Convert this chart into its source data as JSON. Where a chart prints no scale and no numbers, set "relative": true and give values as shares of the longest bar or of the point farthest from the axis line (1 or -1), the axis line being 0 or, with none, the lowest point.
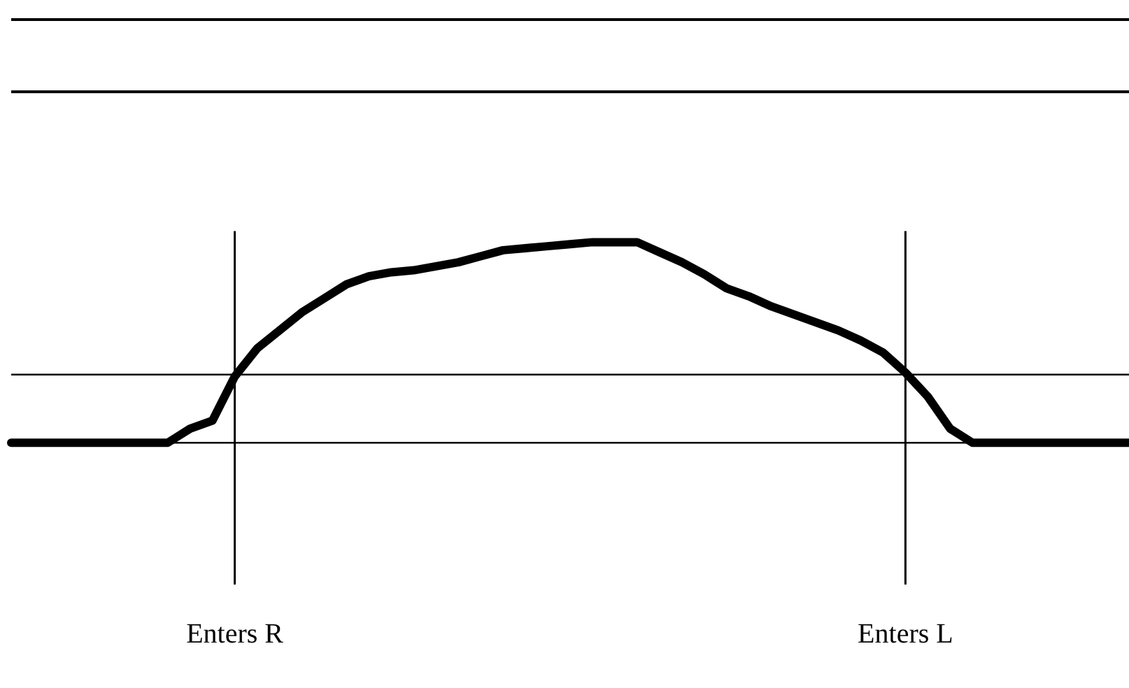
{
  "chart_data": {
    "type": "line",
    "relative": true,
    "tick_labels": "x",
    "marker": "none",
    "line_style": "solid",
    "categories": [
      null,
      null,
      null,
      null,
      null,
      null,
      null,
      null,
      null,
      null,
      "Enters R",
      null,
      null,
      null,
      null,
      null,
      null,
      null,
      null,
      null,
      null,
      null,
      null,
      null,
      null,
      null,
      null,
      null,
      null,
      null,
      null,
      null,
      null,
      null,
      null,
      null,
      null,
      null,
      null,
      null,
      "Enters L",
      null,
      null,
      null,
      null,
      null,
      null,
      null,
      null,
      null,
      null
    ],
    "series": [
      {
        "color": "#000000",
        "values": [
          0,
          0,
          0,
          0,
          0,
          0,
          0,
          0,
          0.07,
          0.11,
          0.33,
          0.47,
          0.56,
          0.65,
          0.72,
          0.79,
          0.83,
          0.85,
          0.86,
          0.88,
          0.9,
          0.93,
          0.96,
          0.97,
          0.98,
          0.99,
          1,
          1,
          1,
          0.95,
          0.9,
          0.84,
          0.77,
          0.73,
          0.68,
          0.64,
          0.6,
          0.56,
          0.51,
          0.45,
          0.35,
          0.23,
          0.07,
          0,
          0,
          0,
          0,
          0,
          0,
          0,
          0
        ]
      }
    ],
    "ref_lines": [
      {
        "axis": "y",
        "value": 2.11,
        "color": "#000000"
      },
      {
        "axis": "y",
        "value": 1.75,
        "color": "#000000"
      },
      {
        "axis": "y",
        "value": 0.34,
        "color": "#000000"
      },
      {
        "axis": "y",
        "value": 0,
        "color": "#000000"
      },
      {
        "axis": "x",
        "value": "Enters R",
        "color": "#000000"
      },
      {
        "axis": "x",
        "value": "Enters L",
        "color": "#000000"
      }
    ]
  }
}
